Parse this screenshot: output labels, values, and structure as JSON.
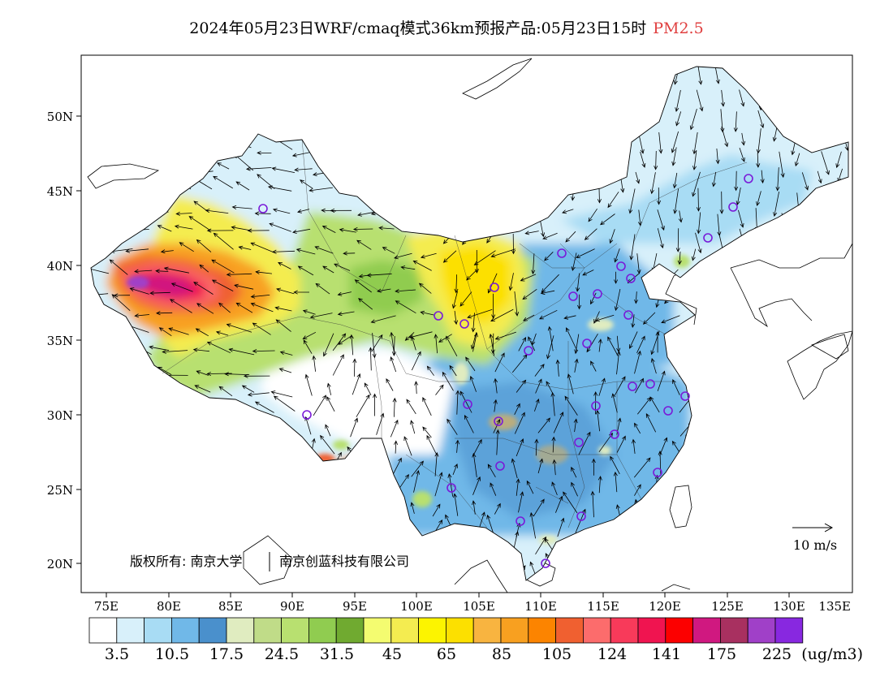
{
  "title": {
    "main": "2024年05月23日WRF/cmaq模式36km预报产品:05月23日15时",
    "variable": "PM2.5"
  },
  "axes": {
    "lon_ticks": [
      "75E",
      "80E",
      "85E",
      "90E",
      "95E",
      "100E",
      "105E",
      "110E",
      "115E",
      "120E",
      "125E",
      "130E",
      "135E"
    ],
    "lat_ticks": [
      "50N",
      "45N",
      "40N",
      "35N",
      "30N",
      "25N",
      "20N"
    ]
  },
  "colorbar": {
    "colors": [
      "#ffffff",
      "#d8f0fa",
      "#a8dcf4",
      "#70b8e8",
      "#4a90cc",
      "#e0ecc0",
      "#c0dc88",
      "#b8e070",
      "#90cc50",
      "#70aa30",
      "#f4fc70",
      "#f4ec50",
      "#fcf400",
      "#fce000",
      "#f8b440",
      "#f8a020",
      "#fc8400",
      "#f06030",
      "#fc6c6c",
      "#f83a5a",
      "#f01450",
      "#fc0000",
      "#d01880",
      "#a83060",
      "#a040c8",
      "#8828e0"
    ],
    "labels": [
      "3.5",
      "10.5",
      "17.5",
      "24.5",
      "31.5",
      "45",
      "65",
      "85",
      "105",
      "124",
      "141",
      "175",
      "225"
    ],
    "unit": "(ug/m3)"
  },
  "annotations": {
    "copyright": "版权所有: 南京大学",
    "company": "南京创蓝科技有限公司",
    "wind_reference": "10 m/s"
  }
}
